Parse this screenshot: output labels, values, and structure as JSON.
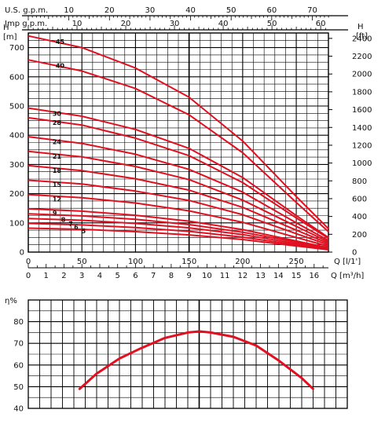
{
  "chart_data": [
    {
      "type": "line",
      "title": "",
      "x_top1": {
        "label": "U.S. g.p.m.",
        "ticks": [
          10,
          20,
          30,
          40,
          50,
          60,
          70
        ]
      },
      "x_top2": {
        "label": "Imp  g.p.m.",
        "ticks": [
          10,
          20,
          30,
          40,
          50,
          60
        ]
      },
      "x_bottom1": {
        "label": "Q [l/1']",
        "ticks": [
          0,
          50,
          100,
          150,
          200,
          250
        ],
        "lim": [
          0,
          280
        ]
      },
      "x_bottom2": {
        "label": "Q [m³/h]",
        "ticks": [
          0,
          1,
          2,
          3,
          4,
          5,
          6,
          7,
          8,
          9,
          10,
          11,
          12,
          13,
          14,
          15,
          16
        ]
      },
      "y_left": {
        "label_top": "H",
        "label_unit": "[m]",
        "ticks": [
          0,
          100,
          200,
          300,
          400,
          500,
          600,
          700
        ],
        "lim": [
          0,
          750
        ]
      },
      "y_right": {
        "label_top": "H",
        "label_unit": "[ft]",
        "ticks": [
          0,
          200,
          400,
          600,
          800,
          1000,
          1200,
          1400,
          1600,
          1800,
          2000,
          2200,
          2400
        ]
      },
      "grid": true,
      "color": "#e01020",
      "series": [
        {
          "name": "45",
          "x": [
            0,
            50,
            100,
            150,
            200,
            250,
            280
          ],
          "y": [
            740,
            700,
            630,
            530,
            380,
            190,
            80
          ]
        },
        {
          "name": "40",
          "x": [
            0,
            50,
            100,
            150,
            200,
            250,
            280
          ],
          "y": [
            658,
            620,
            560,
            470,
            340,
            170,
            70
          ]
        },
        {
          "name": "30",
          "x": [
            0,
            50,
            100,
            150,
            200,
            250,
            280
          ],
          "y": [
            493,
            465,
            420,
            355,
            255,
            125,
            50
          ]
        },
        {
          "name": "28",
          "x": [
            0,
            50,
            100,
            150,
            200,
            250,
            280
          ],
          "y": [
            460,
            435,
            390,
            330,
            238,
            117,
            47
          ]
        },
        {
          "name": "24",
          "x": [
            0,
            50,
            100,
            150,
            200,
            250,
            280
          ],
          "y": [
            395,
            372,
            335,
            283,
            205,
            100,
            40
          ]
        },
        {
          "name": "21",
          "x": [
            0,
            50,
            100,
            150,
            200,
            250,
            280
          ],
          "y": [
            345,
            326,
            293,
            248,
            178,
            88,
            35
          ]
        },
        {
          "name": "18",
          "x": [
            0,
            50,
            100,
            150,
            200,
            250,
            280
          ],
          "y": [
            296,
            279,
            251,
            212,
            153,
            75,
            30
          ]
        },
        {
          "name": "15",
          "x": [
            0,
            50,
            100,
            150,
            200,
            250,
            280
          ],
          "y": [
            246,
            233,
            209,
            177,
            128,
            63,
            25
          ]
        },
        {
          "name": "12",
          "x": [
            0,
            50,
            100,
            150,
            200,
            250,
            280
          ],
          "y": [
            197,
            186,
            168,
            141,
            102,
            50,
            20
          ]
        },
        {
          "name": "9",
          "x": [
            0,
            50,
            100,
            150,
            200,
            250,
            280
          ],
          "y": [
            148,
            140,
            126,
            106,
            77,
            38,
            15
          ]
        },
        {
          "name": "8",
          "x": [
            0,
            50,
            100,
            150,
            200,
            250,
            280
          ],
          "y": [
            131,
            124,
            112,
            94,
            68,
            34,
            13
          ]
        },
        {
          "name": "7",
          "x": [
            0,
            50,
            100,
            150,
            200,
            250,
            280
          ],
          "y": [
            115,
            109,
            98,
            83,
            60,
            29,
            12
          ]
        },
        {
          "name": "6",
          "x": [
            0,
            50,
            100,
            150,
            200,
            250,
            280
          ],
          "y": [
            98,
            93,
            84,
            71,
            51,
            25,
            10
          ]
        },
        {
          "name": "5",
          "x": [
            0,
            50,
            100,
            150,
            200,
            250,
            280
          ],
          "y": [
            82,
            78,
            70,
            59,
            43,
            21,
            8
          ]
        }
      ]
    },
    {
      "type": "line",
      "title": "",
      "ylabel": "η%",
      "y_ticks": [
        40,
        50,
        60,
        70,
        80
      ],
      "ylim": [
        40,
        90
      ],
      "xlim": [
        0,
        280
      ],
      "grid": true,
      "color": "#e01020",
      "series": [
        {
          "x": [
            45,
            60,
            80,
            100,
            120,
            140,
            150,
            160,
            180,
            200,
            220,
            240,
            250
          ],
          "y": [
            49,
            56,
            63,
            68,
            72.5,
            75,
            75.5,
            75,
            73,
            69,
            62,
            54,
            49
          ]
        }
      ]
    }
  ]
}
